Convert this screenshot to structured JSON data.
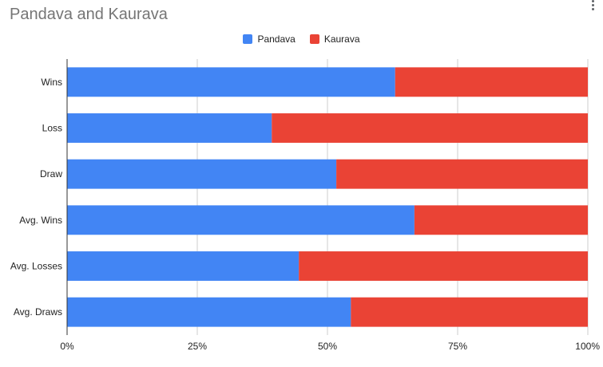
{
  "chart_data": {
    "type": "bar",
    "orientation": "horizontal",
    "stacked": "percent",
    "title": "Pandava and Kaurava",
    "categories": [
      "Wins",
      "Loss",
      "Draw",
      "Avg. Wins",
      "Avg. Losses",
      "Avg. Draws"
    ],
    "series": [
      {
        "name": "Pandava",
        "color": "#4285F4",
        "values": [
          63,
          39.3,
          51.7,
          66.7,
          44.5,
          54.5
        ]
      },
      {
        "name": "Kaurava",
        "color": "#EA4335",
        "values": [
          37,
          60.7,
          48.3,
          33.3,
          55.5,
          45.5
        ]
      }
    ],
    "xlim": [
      0,
      100
    ],
    "xticks": [
      "0%",
      "25%",
      "50%",
      "75%",
      "100%"
    ],
    "grid": true,
    "legend": "top"
  }
}
